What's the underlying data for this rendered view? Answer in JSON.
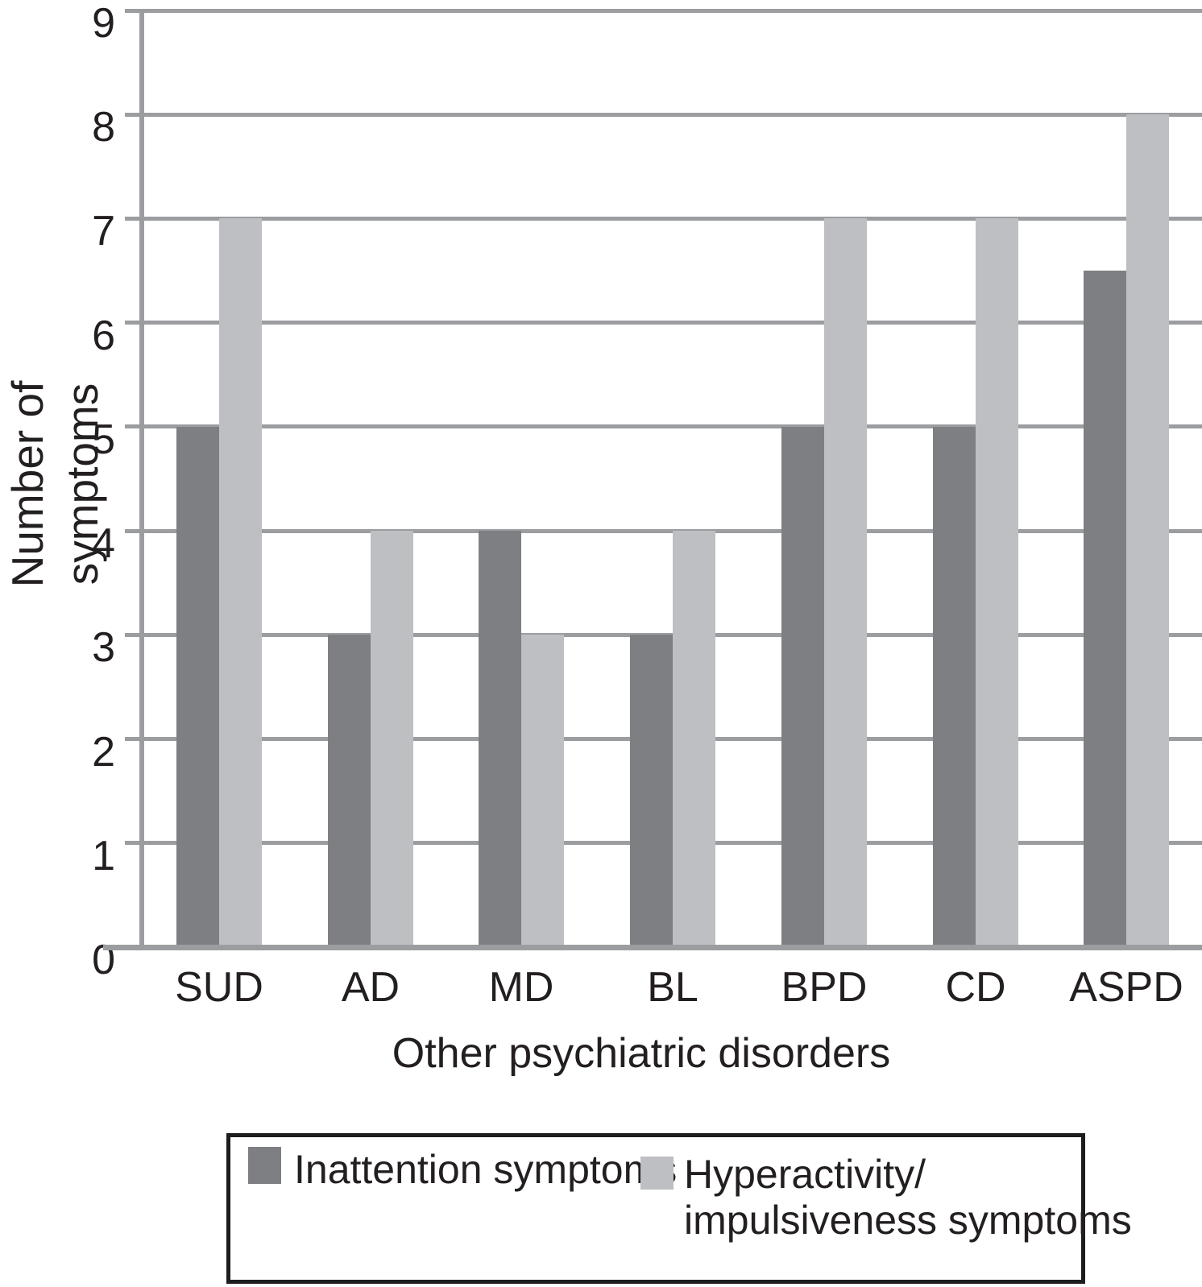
{
  "chart_data": {
    "type": "bar",
    "categories": [
      "SUD",
      "AD",
      "MD",
      "BL",
      "BPD",
      "CD",
      "ASPD"
    ],
    "series": [
      {
        "name": "Inattention symptoms",
        "color": "#7d7f83",
        "values": [
          5,
          3,
          4,
          3,
          5,
          5,
          6.5
        ]
      },
      {
        "name": "Hyperactivity/impulsiveness symptoms",
        "color": "#bdbfc3",
        "values": [
          7,
          4,
          3,
          4,
          7,
          7,
          8
        ]
      }
    ],
    "title": "",
    "xlabel": "Other psychiatric disorders",
    "ylabel": "Number of symptoms",
    "ylim": [
      0,
      9
    ],
    "ytick_step": 1,
    "yticks": [
      0,
      1,
      2,
      3,
      4,
      5,
      6,
      7,
      8,
      9
    ],
    "grid": true,
    "gridline_color": "#9b9da0",
    "axis_color": "#9b9da0",
    "text_color": "#231f20",
    "legend_position": "below-chart"
  },
  "legend": {
    "items": [
      {
        "lines": [
          "Inattention symptoms"
        ],
        "color": "#7d7f83"
      },
      {
        "lines": [
          "Hyperactivity/",
          "impulsiveness symptoms"
        ],
        "color": "#bdbfc3"
      }
    ]
  }
}
